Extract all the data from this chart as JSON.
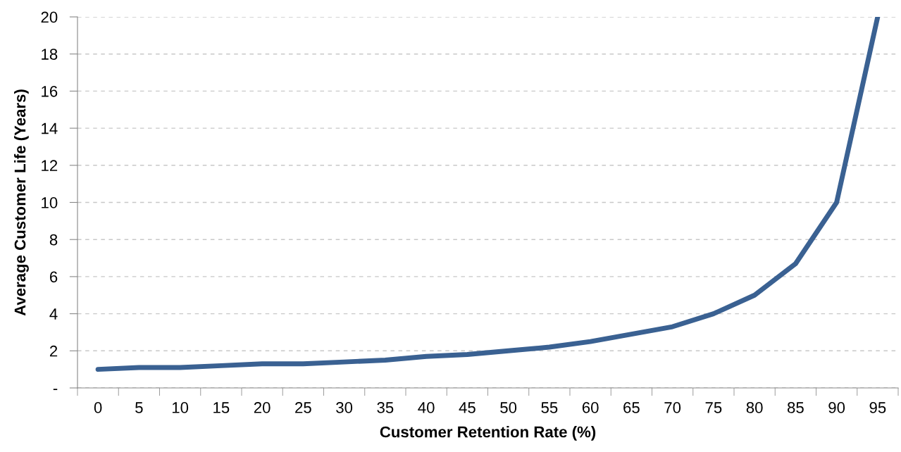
{
  "chart_data": {
    "type": "line",
    "xlabel": "Customer Retention Rate (%)",
    "ylabel": "Average Customer Life (Years)",
    "categories": [
      "0",
      "5",
      "10",
      "15",
      "20",
      "25",
      "30",
      "35",
      "40",
      "45",
      "50",
      "55",
      "60",
      "65",
      "70",
      "75",
      "80",
      "85",
      "90",
      "95"
    ],
    "series": [
      {
        "color": "#3a6192",
        "values": [
          1.0,
          1.1,
          1.1,
          1.2,
          1.3,
          1.3,
          1.4,
          1.5,
          1.7,
          1.8,
          2.0,
          2.2,
          2.5,
          2.9,
          3.3,
          4.0,
          5.0,
          6.7,
          10,
          20
        ]
      }
    ],
    "ylim": [
      0,
      20
    ],
    "yticks": [
      {
        "value": 0,
        "label": "-"
      },
      2,
      4,
      6,
      8,
      10,
      12,
      14,
      16,
      18,
      20
    ],
    "grid": "y",
    "marker": "none",
    "line_style": "solid"
  }
}
